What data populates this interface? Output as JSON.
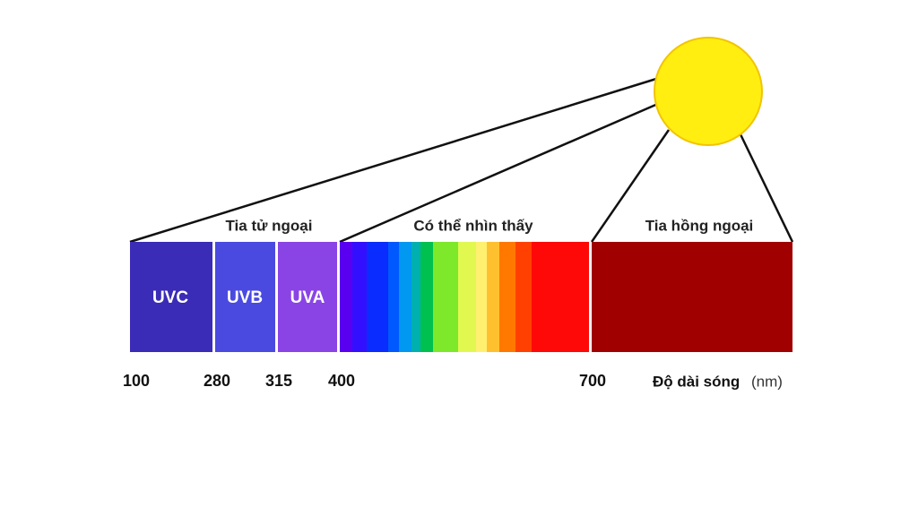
{
  "regions": [
    {
      "label": "Tia tử ngoại"
    },
    {
      "label": "Có thể nhìn thấy"
    },
    {
      "label": "Tia hồng ngoại"
    }
  ],
  "bands": [
    {
      "label": "UVC"
    },
    {
      "label": "UVB"
    },
    {
      "label": "UVA"
    }
  ],
  "wavelengths": [
    100,
    280,
    315,
    400,
    700
  ],
  "axis_label": "Độ dài sóng",
  "axis_unit": "(nm)"
}
